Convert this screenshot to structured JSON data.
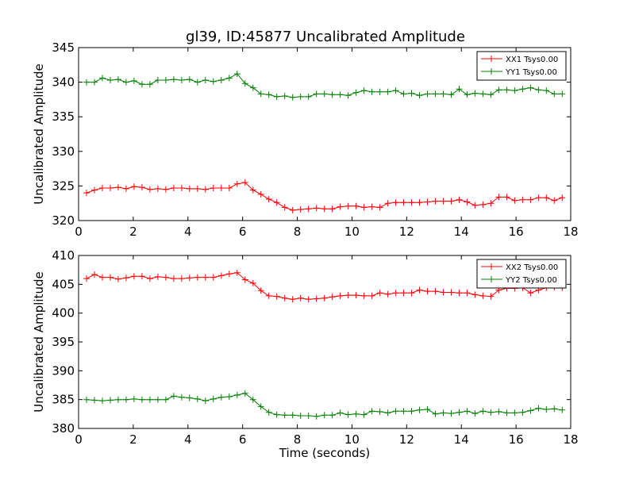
{
  "title": "gl39, ID:45877 Uncalibrated Amplitude",
  "colors": {
    "red": "#ff0000",
    "green": "#008000"
  },
  "chart_data": [
    {
      "type": "line",
      "ylabel": "Uncalibrated Amplitude",
      "xlabel": "",
      "xlim": [
        0,
        18
      ],
      "ylim": [
        320,
        345
      ],
      "xticks": [
        0,
        2,
        4,
        6,
        8,
        10,
        12,
        14,
        16,
        18
      ],
      "yticks": [
        320,
        325,
        330,
        335,
        340,
        345
      ],
      "grid": false,
      "legend_position": "top-right",
      "x": [
        0.29,
        0.58,
        0.87,
        1.16,
        1.45,
        1.74,
        2.03,
        2.32,
        2.61,
        2.9,
        3.19,
        3.48,
        3.77,
        4.06,
        4.35,
        4.64,
        4.93,
        5.22,
        5.51,
        5.8,
        6.09,
        6.38,
        6.67,
        6.96,
        7.25,
        7.54,
        7.83,
        8.12,
        8.41,
        8.7,
        8.99,
        9.28,
        9.57,
        9.86,
        10.15,
        10.44,
        10.73,
        11.02,
        11.31,
        11.6,
        11.89,
        12.18,
        12.47,
        12.76,
        13.05,
        13.34,
        13.63,
        13.92,
        14.21,
        14.5,
        14.79,
        15.08,
        15.37,
        15.66,
        15.95,
        16.24,
        16.53,
        16.82,
        17.11,
        17.4,
        17.69
      ],
      "series": [
        {
          "name": "XX1 Tsys0.00",
          "color": "#ff0000",
          "values": [
            324.0,
            324.4,
            324.7,
            324.7,
            324.8,
            324.6,
            324.9,
            324.8,
            324.5,
            324.6,
            324.5,
            324.7,
            324.7,
            324.6,
            324.6,
            324.5,
            324.7,
            324.7,
            324.7,
            325.3,
            325.5,
            324.4,
            323.8,
            323.1,
            322.6,
            321.9,
            321.5,
            321.6,
            321.7,
            321.8,
            321.7,
            321.7,
            322.0,
            322.1,
            322.1,
            321.9,
            322.0,
            321.9,
            322.5,
            322.6,
            322.6,
            322.6,
            322.6,
            322.7,
            322.8,
            322.8,
            322.8,
            323.0,
            322.7,
            322.2,
            322.3,
            322.5,
            323.4,
            323.4,
            322.9,
            323.0,
            323.0,
            323.3,
            323.3,
            322.9,
            323.3
          ]
        },
        {
          "name": "YY1 Tsys0.00",
          "color": "#008000",
          "values": [
            340.0,
            340.0,
            340.6,
            340.3,
            340.4,
            340.0,
            340.2,
            339.7,
            339.7,
            340.3,
            340.3,
            340.4,
            340.3,
            340.4,
            340.0,
            340.3,
            340.1,
            340.3,
            340.6,
            341.2,
            339.8,
            339.2,
            338.3,
            338.2,
            337.9,
            338.0,
            337.8,
            337.9,
            337.9,
            338.3,
            338.3,
            338.2,
            338.2,
            338.1,
            338.5,
            338.8,
            338.6,
            338.6,
            338.6,
            338.8,
            338.3,
            338.4,
            338.1,
            338.3,
            338.3,
            338.3,
            338.2,
            339.0,
            338.2,
            338.4,
            338.3,
            338.2,
            338.9,
            338.9,
            338.8,
            339.0,
            339.2,
            338.9,
            338.8,
            338.3,
            338.3
          ]
        }
      ]
    },
    {
      "type": "line",
      "ylabel": "Uncalibrated Amplitude",
      "xlabel": "Time (seconds)",
      "xlim": [
        0,
        18
      ],
      "ylim": [
        380,
        410
      ],
      "xticks": [
        0,
        2,
        4,
        6,
        8,
        10,
        12,
        14,
        16,
        18
      ],
      "yticks": [
        380,
        385,
        390,
        395,
        400,
        405,
        410
      ],
      "grid": false,
      "legend_position": "top-right",
      "x": [
        0.29,
        0.58,
        0.87,
        1.16,
        1.45,
        1.74,
        2.03,
        2.32,
        2.61,
        2.9,
        3.19,
        3.48,
        3.77,
        4.06,
        4.35,
        4.64,
        4.93,
        5.22,
        5.51,
        5.8,
        6.09,
        6.38,
        6.67,
        6.96,
        7.25,
        7.54,
        7.83,
        8.12,
        8.41,
        8.7,
        8.99,
        9.28,
        9.57,
        9.86,
        10.15,
        10.44,
        10.73,
        11.02,
        11.31,
        11.6,
        11.89,
        12.18,
        12.47,
        12.76,
        13.05,
        13.34,
        13.63,
        13.92,
        14.21,
        14.5,
        14.79,
        15.08,
        15.37,
        15.66,
        15.95,
        16.24,
        16.53,
        16.82,
        17.11,
        17.4,
        17.69
      ],
      "series": [
        {
          "name": "XX2 Tsys0.00",
          "color": "#ff0000",
          "values": [
            406.0,
            406.7,
            406.2,
            406.2,
            405.9,
            406.1,
            406.4,
            406.4,
            406.0,
            406.3,
            406.2,
            406.0,
            406.0,
            406.1,
            406.2,
            406.2,
            406.2,
            406.5,
            406.8,
            407.0,
            405.8,
            405.2,
            403.9,
            403.0,
            402.9,
            402.6,
            402.4,
            402.6,
            402.4,
            402.5,
            402.6,
            402.8,
            403.0,
            403.1,
            403.1,
            403.0,
            403.0,
            403.5,
            403.3,
            403.5,
            403.5,
            403.5,
            404.0,
            403.8,
            403.8,
            403.6,
            403.6,
            403.5,
            403.5,
            403.2,
            403.0,
            402.9,
            404.0,
            404.3,
            404.3,
            404.4,
            403.5,
            404.0,
            404.4,
            404.5,
            404.4
          ]
        },
        {
          "name": "YY2 Tsys0.00",
          "color": "#008000",
          "values": [
            385.0,
            384.9,
            384.8,
            384.9,
            385.0,
            385.0,
            385.1,
            385.0,
            385.0,
            385.0,
            385.0,
            385.6,
            385.4,
            385.3,
            385.1,
            384.8,
            385.1,
            385.4,
            385.5,
            385.8,
            386.1,
            385.0,
            383.8,
            382.8,
            382.4,
            382.3,
            382.3,
            382.2,
            382.2,
            382.1,
            382.3,
            382.3,
            382.7,
            382.4,
            382.5,
            382.4,
            383.0,
            382.9,
            382.7,
            383.0,
            383.0,
            383.0,
            383.2,
            383.3,
            382.5,
            382.7,
            382.6,
            382.8,
            383.0,
            382.6,
            383.0,
            382.8,
            382.9,
            382.7,
            382.7,
            382.8,
            383.1,
            383.5,
            383.3,
            383.4,
            383.2
          ]
        }
      ]
    }
  ]
}
